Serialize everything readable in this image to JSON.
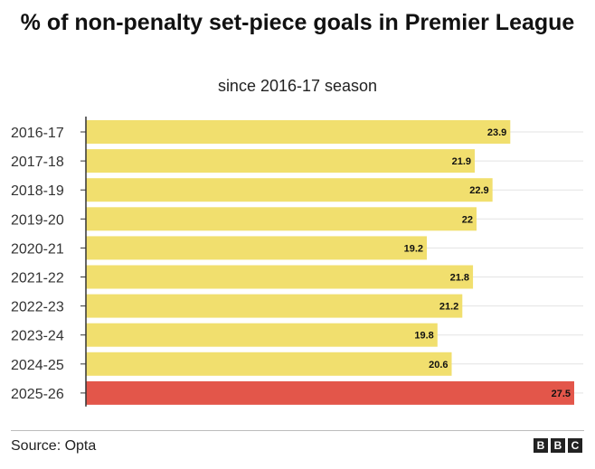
{
  "chart_data": {
    "type": "bar",
    "orientation": "horizontal",
    "title": "% of non-penalty set-piece goals in Premier League",
    "subtitle": "since 2016-17 season",
    "categories": [
      "2016-17",
      "2017-18",
      "2018-19",
      "2019-20",
      "2020-21",
      "2021-22",
      "2022-23",
      "2023-24",
      "2024-25",
      "2025-26"
    ],
    "values": [
      23.9,
      21.9,
      22.9,
      22,
      19.2,
      21.8,
      21.2,
      19.8,
      20.6,
      27.5
    ],
    "value_labels": [
      "23.9",
      "21.9",
      "22.9",
      "22",
      "19.2",
      "21.8",
      "21.2",
      "19.8",
      "20.6",
      "27.5"
    ],
    "xlim": [
      0,
      27.5
    ],
    "xlabel": "",
    "ylabel": "",
    "grid": true,
    "colors": {
      "default": "#f1df6e",
      "highlight": "#e3564a",
      "highlight_category": "2025-26"
    }
  },
  "footer": {
    "source": "Source: Opta",
    "logo_letters": [
      "B",
      "B",
      "C"
    ]
  }
}
